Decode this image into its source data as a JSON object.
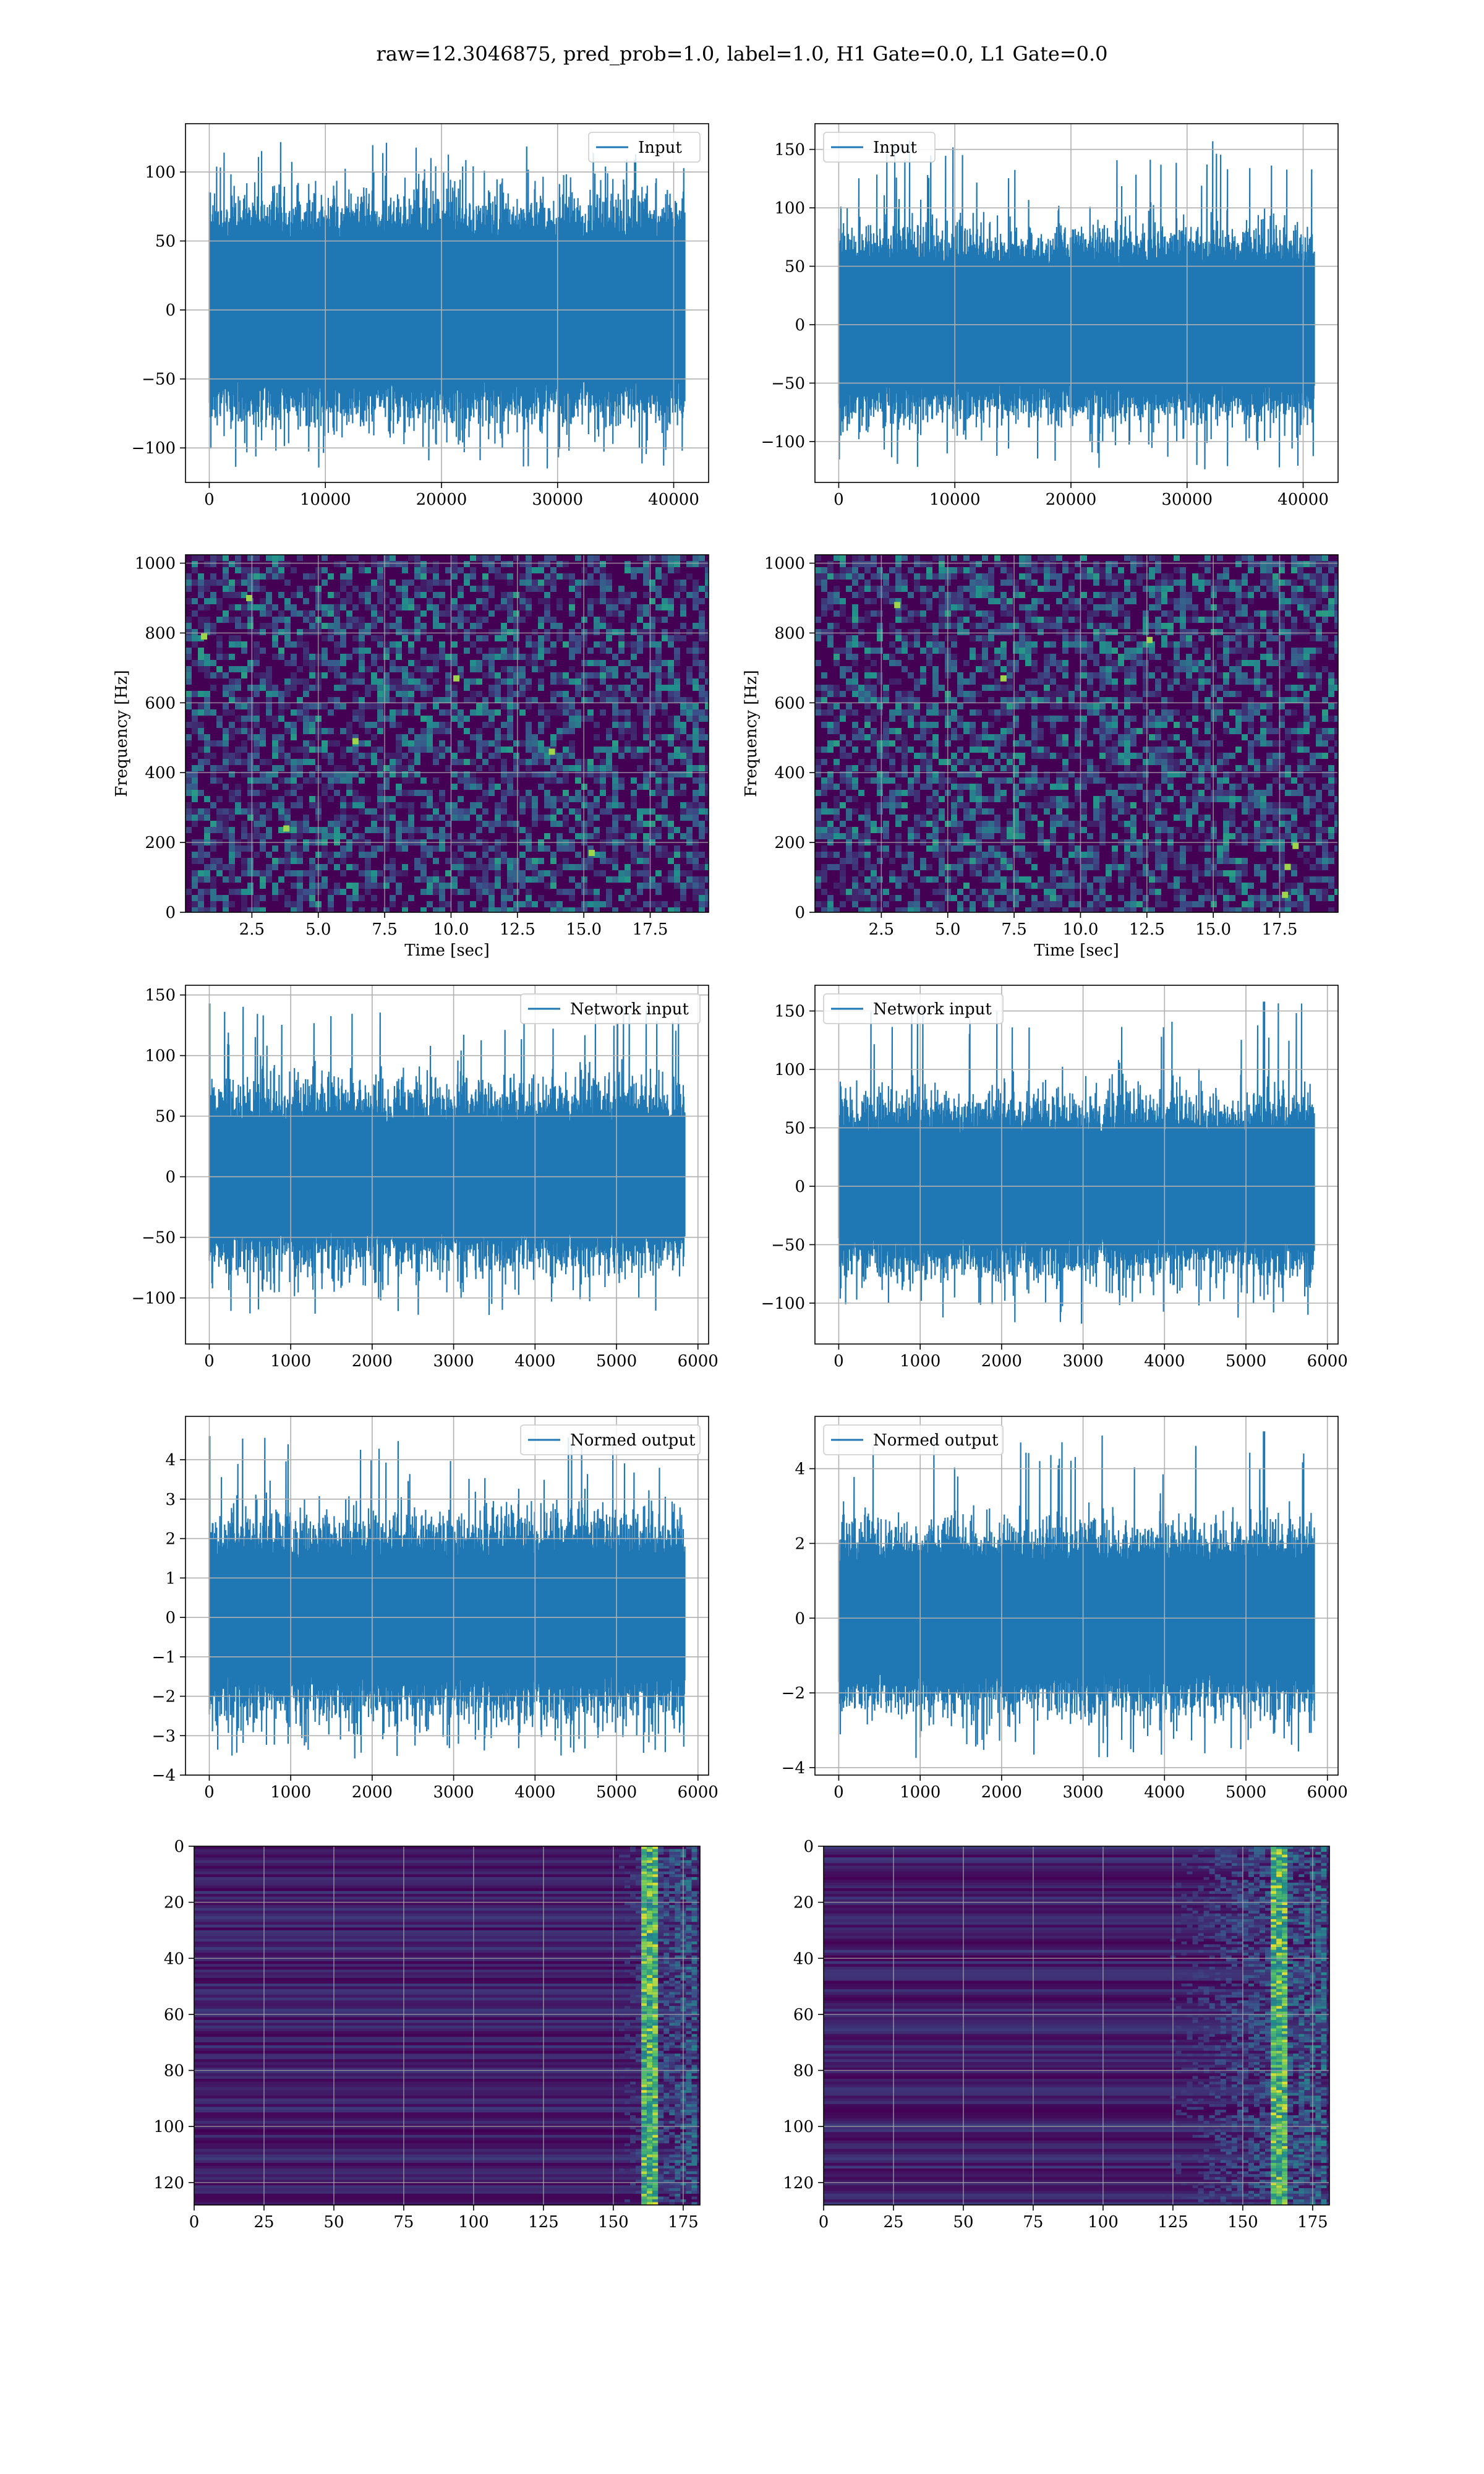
{
  "suptitle": "raw=12.3046875, pred_prob=1.0, label=1.0, H1 Gate=0.0, L1 Gate=0.0",
  "colors": {
    "series": "#1f77b4",
    "grid": "#b0b0b0",
    "heat_low": "#440154",
    "heat_high": "#fde725"
  },
  "chart_data": [
    {
      "id": "input-h1",
      "type": "line",
      "legend": "Input",
      "legend_loc": "upper right",
      "x_range": [
        0,
        40960
      ],
      "xlim": [
        -2048,
        43008
      ],
      "ylim": [
        -125,
        135
      ],
      "xticks": [
        0,
        10000,
        20000,
        30000,
        40000
      ],
      "yticks": [
        -100,
        -50,
        0,
        50,
        100
      ],
      "xlabel": "",
      "ylabel": "",
      "grid": true,
      "band": {
        "core": 55,
        "spread": 35,
        "peak": 124,
        "trough": -116
      }
    },
    {
      "id": "input-l1",
      "type": "line",
      "legend": "Input",
      "legend_loc": "upper left",
      "x_range": [
        0,
        40960
      ],
      "xlim": [
        -2048,
        43008
      ],
      "ylim": [
        -135,
        172
      ],
      "xticks": [
        0,
        10000,
        20000,
        30000,
        40000
      ],
      "yticks": [
        -100,
        -50,
        0,
        50,
        100,
        150
      ],
      "xlabel": "",
      "ylabel": "",
      "grid": true,
      "band": {
        "core": 55,
        "spread": 35,
        "peak": 158,
        "trough": -125
      }
    },
    {
      "id": "spec-h1",
      "type": "heatmap",
      "xlim": [
        0,
        19.7
      ],
      "ylim": [
        0,
        1024
      ],
      "xticks": [
        2.5,
        5.0,
        7.5,
        10.0,
        12.5,
        15.0,
        17.5
      ],
      "yticks": [
        0,
        200,
        400,
        600,
        800,
        1000
      ],
      "xlabel": "Time [sec]",
      "ylabel": "Frequency [Hz]",
      "grid": true,
      "hot_spots": [
        [
          15.3,
          170
        ],
        [
          2.4,
          900
        ],
        [
          10.2,
          670
        ],
        [
          6.4,
          490
        ],
        [
          13.8,
          460
        ],
        [
          0.7,
          790
        ],
        [
          3.8,
          240
        ]
      ]
    },
    {
      "id": "spec-l1",
      "type": "heatmap",
      "xlim": [
        0,
        19.7
      ],
      "ylim": [
        0,
        1024
      ],
      "xticks": [
        2.5,
        5.0,
        7.5,
        10.0,
        12.5,
        15.0,
        17.5
      ],
      "yticks": [
        0,
        200,
        400,
        600,
        800,
        1000
      ],
      "xlabel": "Time [sec]",
      "ylabel": "Frequency [Hz]",
      "grid": true,
      "hot_spots": [
        [
          17.8,
          130
        ],
        [
          17.7,
          50
        ],
        [
          18.1,
          190
        ],
        [
          7.1,
          670
        ],
        [
          12.6,
          780
        ],
        [
          3.1,
          880
        ]
      ]
    },
    {
      "id": "network-h1",
      "type": "line",
      "legend": "Network input",
      "legend_loc": "upper right",
      "x_range": [
        0,
        5839
      ],
      "xlim": [
        -292,
        6131
      ],
      "ylim": [
        -138,
        158
      ],
      "xticks": [
        0,
        1000,
        2000,
        3000,
        4000,
        5000,
        6000
      ],
      "yticks": [
        -100,
        -50,
        0,
        50,
        100,
        150
      ],
      "xlabel": "",
      "ylabel": "",
      "grid": true,
      "band": {
        "core": 48,
        "spread": 40,
        "peak": 143,
        "trough": -115
      },
      "spike_at": 0
    },
    {
      "id": "network-l1",
      "type": "line",
      "legend": "Network input",
      "legend_loc": "upper left",
      "x_range": [
        0,
        5839
      ],
      "xlim": [
        -292,
        6131
      ],
      "ylim": [
        -135,
        172
      ],
      "xticks": [
        0,
        1000,
        2000,
        3000,
        4000,
        5000,
        6000
      ],
      "yticks": [
        -100,
        -50,
        0,
        50,
        100,
        150
      ],
      "xlabel": "",
      "ylabel": "",
      "grid": true,
      "band": {
        "core": 48,
        "spread": 38,
        "peak": 158,
        "trough": -118
      },
      "spike_at": 5220
    },
    {
      "id": "normed-h1",
      "type": "line",
      "legend": "Normed output",
      "legend_loc": "upper right",
      "x_range": [
        0,
        5839
      ],
      "xlim": [
        -292,
        6131
      ],
      "ylim": [
        -4,
        5.1
      ],
      "xticks": [
        0,
        1000,
        2000,
        3000,
        4000,
        5000,
        6000
      ],
      "yticks": [
        -4,
        -3,
        -2,
        -1,
        0,
        1,
        2,
        3,
        4
      ],
      "xlabel": "",
      "ylabel": "",
      "grid": true,
      "band": {
        "core": 1.6,
        "spread": 1.3,
        "peak": 4.6,
        "trough": -3.6
      },
      "spike_at": 0
    },
    {
      "id": "normed-l1",
      "type": "line",
      "legend": "Normed output",
      "legend_loc": "upper left",
      "x_range": [
        0,
        5839
      ],
      "xlim": [
        -292,
        6131
      ],
      "ylim": [
        -4.2,
        5.4
      ],
      "xticks": [
        0,
        1000,
        2000,
        3000,
        4000,
        5000,
        6000
      ],
      "yticks": [
        -4,
        -2,
        0,
        2,
        4
      ],
      "xlabel": "",
      "ylabel": "",
      "grid": true,
      "band": {
        "core": 1.6,
        "spread": 1.2,
        "peak": 5.0,
        "trough": -3.8
      },
      "spike_at": 5220
    },
    {
      "id": "features-h1",
      "type": "heatmap",
      "xlim": [
        0,
        181
      ],
      "ylim": [
        128,
        0
      ],
      "xticks": [
        0,
        25,
        50,
        75,
        100,
        125,
        150,
        175
      ],
      "yticks": [
        0,
        20,
        40,
        60,
        80,
        100,
        120
      ],
      "xlabel": "",
      "ylabel": "",
      "grid": true,
      "active_columns": [
        150,
        180
      ],
      "bright_column": 162
    },
    {
      "id": "features-l1",
      "type": "heatmap",
      "xlim": [
        0,
        181
      ],
      "ylim": [
        128,
        0
      ],
      "xticks": [
        0,
        25,
        50,
        75,
        100,
        125,
        150,
        175
      ],
      "yticks": [
        0,
        20,
        40,
        60,
        80,
        100,
        120
      ],
      "xlabel": "",
      "ylabel": "",
      "grid": true,
      "active_columns": [
        120,
        180
      ],
      "bright_column": 162
    }
  ]
}
